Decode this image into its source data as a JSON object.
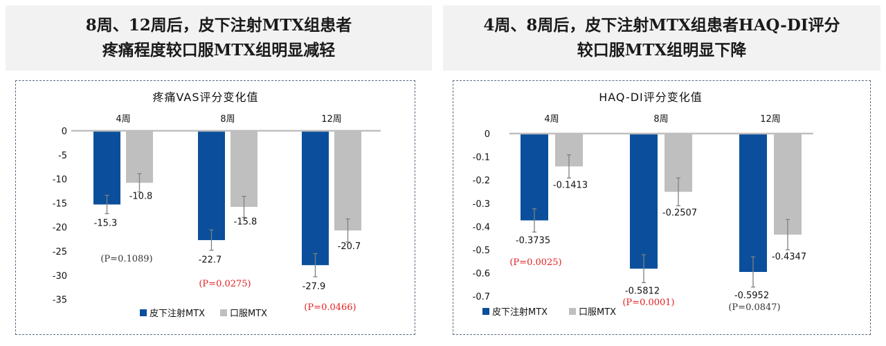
{
  "headers": {
    "left": [
      "8周、12周后，皮下注射MTX组患者",
      "疼痛程度较口服MTX组明显减轻"
    ],
    "right": [
      "4周、8周后，皮下注射MTX组患者HAQ-DI评分",
      "较口服MTX组明显下降"
    ]
  },
  "colors": {
    "series_sc": "#0b4f9c",
    "series_oral": "#bfbfbf",
    "p_sig": "#e02020",
    "p_ns": "#333333",
    "error_bar": "#7f7f7f"
  },
  "chart_data": [
    {
      "type": "bar",
      "title": "疼痛VAS评分变化值",
      "categories": [
        "4周",
        "8周",
        "12周"
      ],
      "category_axis_position": "top",
      "ylim": [
        -35,
        0
      ],
      "yticks": [
        0,
        -5,
        -10,
        -15,
        -20,
        -25,
        -30,
        -35
      ],
      "ytick_labels": [
        "0",
        "-5",
        "-10",
        "-15",
        "-20",
        "-25",
        "-30",
        "-35"
      ],
      "series": [
        {
          "name": "皮下注射MTX",
          "values": [
            -15.3,
            -22.7,
            -27.9
          ],
          "labels": [
            "-15.3",
            "-22.7",
            "-27.9"
          ],
          "error": [
            1.9,
            2.1,
            2.4
          ]
        },
        {
          "name": "口服MTX",
          "values": [
            -10.8,
            -15.8,
            -20.7
          ],
          "labels": [
            "-10.8",
            "-15.8",
            "-20.7"
          ],
          "error": [
            1.9,
            2.2,
            2.4
          ]
        }
      ],
      "p_values": [
        {
          "text": "(P=0.1089)",
          "significant": false
        },
        {
          "text": "(P=0.0275)",
          "significant": true
        },
        {
          "text": "(P=0.0466)",
          "significant": true
        }
      ],
      "legend": "bottom"
    },
    {
      "type": "bar",
      "title": "HAQ-DI评分变化值",
      "categories": [
        "4周",
        "8周",
        "12周"
      ],
      "category_axis_position": "top",
      "ylim": [
        -0.7,
        0
      ],
      "yticks": [
        0,
        -0.1,
        -0.2,
        -0.3,
        -0.4,
        -0.5,
        -0.6,
        -0.7
      ],
      "ytick_labels": [
        "0",
        "-0.1",
        "-0.2",
        "-0.3",
        "-0.4",
        "-0.5",
        "-0.6",
        "-0.7"
      ],
      "series": [
        {
          "name": "皮下注射MTX",
          "values": [
            -0.3735,
            -0.5812,
            -0.5952
          ],
          "labels": [
            "-0.3735",
            "-0.5812",
            "-0.5952"
          ],
          "error": [
            0.05,
            0.06,
            0.065
          ]
        },
        {
          "name": "口服MTX",
          "values": [
            -0.1413,
            -0.2507,
            -0.4347
          ],
          "labels": [
            "-0.1413",
            "-0.2507",
            "-0.4347"
          ],
          "error": [
            0.05,
            0.06,
            0.065
          ]
        }
      ],
      "p_values": [
        {
          "text": "(P=0.0025)",
          "significant": true
        },
        {
          "text": "(P=0.0001)",
          "significant": true
        },
        {
          "text": "(P=0.0847)",
          "significant": false
        }
      ],
      "legend": "bottom"
    }
  ]
}
